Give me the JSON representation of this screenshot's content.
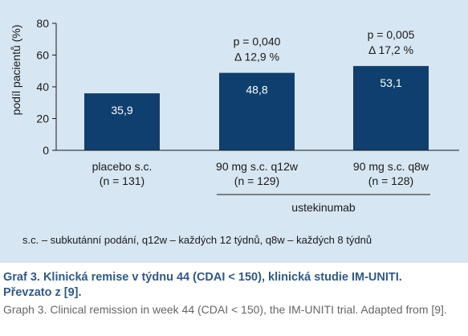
{
  "chart_data": {
    "type": "bar",
    "ylabel": "podíl pacientů (%)",
    "ylim": [
      0,
      80
    ],
    "yticks": [
      0,
      20,
      40,
      60,
      80
    ],
    "grid": false,
    "bar_color": "#0f3f6e",
    "categories": [
      {
        "line1": "placebo s.c.",
        "line2": "(n = 131)"
      },
      {
        "line1": "90 mg s.c. q12w",
        "line2": "(n = 129)"
      },
      {
        "line1": "90 mg s.c. q8w",
        "line2": "(n = 128)"
      }
    ],
    "values": [
      35.9,
      48.8,
      53.1
    ],
    "value_labels": [
      "35,9",
      "48,8",
      "53,1"
    ],
    "annotations": [
      null,
      {
        "line1": "p = 0,040",
        "line2": "Δ 12,9 %"
      },
      {
        "line1": "p = 0,005",
        "line2": "Δ 17,2 %"
      }
    ],
    "group_label": "ustekinumab"
  },
  "footnote": "s.c. – subkutánní podání, q12w –  každých 12 týdnů, q8w – každých 8 týdnů",
  "caption": {
    "title": "Graf 3. Klinická remise v týdnu 44 (CDAI < 150), klinická studie IM-UNITI. Převzato z [9].",
    "english": "Graph 3. Clinical remission in week 44 (CDAI < 150), the IM-UNITI trial. Adapted from [9]."
  }
}
